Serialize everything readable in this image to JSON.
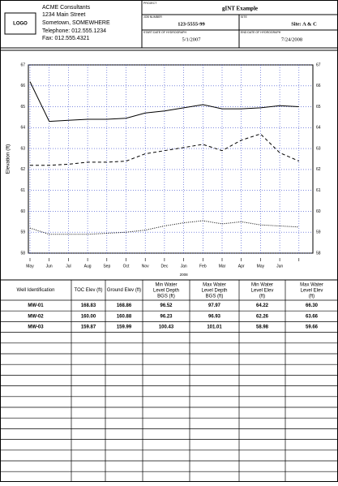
{
  "header": {
    "company": [
      "ACME Consultants",
      "1234 Main Street",
      "Sometown, SOMEWHERE",
      "Telephone:  012.555.1234",
      "Fax:  012.555.4321"
    ],
    "logo": "LOGO",
    "project_label": "PROJECT",
    "project": "gINT Example",
    "job_number_label": "JOB NUMBER",
    "job_number": "123-5555-99",
    "site_label": "SITE",
    "site": "Site: A & C",
    "start_label": "START DATE OF HYDROGRAPH",
    "start_date": "5/1/2007",
    "end_label": "END DATE OF HYDROGRAPH",
    "end_date": "7/24/2008"
  },
  "chart_data": {
    "type": "line",
    "y_label": "Elevation (ft)",
    "categories": [
      "May",
      "Jun",
      "Jul",
      "Aug",
      "Sep",
      "Oct",
      "Nov",
      "Dec",
      "Jan",
      "Feb",
      "Mar",
      "Apr",
      "May",
      "Jun",
      null
    ],
    "year_label": "2008",
    "ylim": [
      58,
      67
    ],
    "yticks": [
      58,
      59,
      60,
      61,
      62,
      63,
      64,
      65,
      66,
      67
    ],
    "grid": true,
    "series": [
      {
        "color": "#000000",
        "dash": "solid",
        "values": [
          66.2,
          64.3,
          64.35,
          64.4,
          64.4,
          64.45,
          64.7,
          64.8,
          64.95,
          65.1,
          64.9,
          64.9,
          64.95,
          65.05,
          65.0
        ]
      },
      {
        "color": "#000000",
        "dash": "dashed",
        "values": [
          62.2,
          62.2,
          62.25,
          62.35,
          62.35,
          62.4,
          62.75,
          62.9,
          63.05,
          63.2,
          62.9,
          63.4,
          63.7,
          62.8,
          62.4
        ]
      },
      {
        "color": "#000000",
        "dash": "dotted",
        "values": [
          59.2,
          58.9,
          58.9,
          58.9,
          58.95,
          59.0,
          59.1,
          59.3,
          59.45,
          59.55,
          59.4,
          59.5,
          59.35,
          59.3,
          59.25
        ]
      }
    ]
  },
  "table": {
    "columns": [
      "Well Identification",
      "TOC Elev (ft)",
      "Ground Elev (ft)",
      "Min Water Level Depth BGS (ft)",
      "Max Water Level Depth BGS (ft)",
      "Min Water Level Elev (ft)",
      "Max Water Level Elev (ft)"
    ],
    "rows": [
      [
        "MW-01",
        "168.83",
        "168.86",
        "96.52",
        "97.97",
        "64.22",
        "66.30"
      ],
      [
        "MW-02",
        "160.00",
        "160.88",
        "96.23",
        "96.93",
        "62.26",
        "63.66"
      ],
      [
        "MW-03",
        "159.87",
        "159.99",
        "100.43",
        "101.01",
        "58.98",
        "59.66"
      ]
    ]
  }
}
